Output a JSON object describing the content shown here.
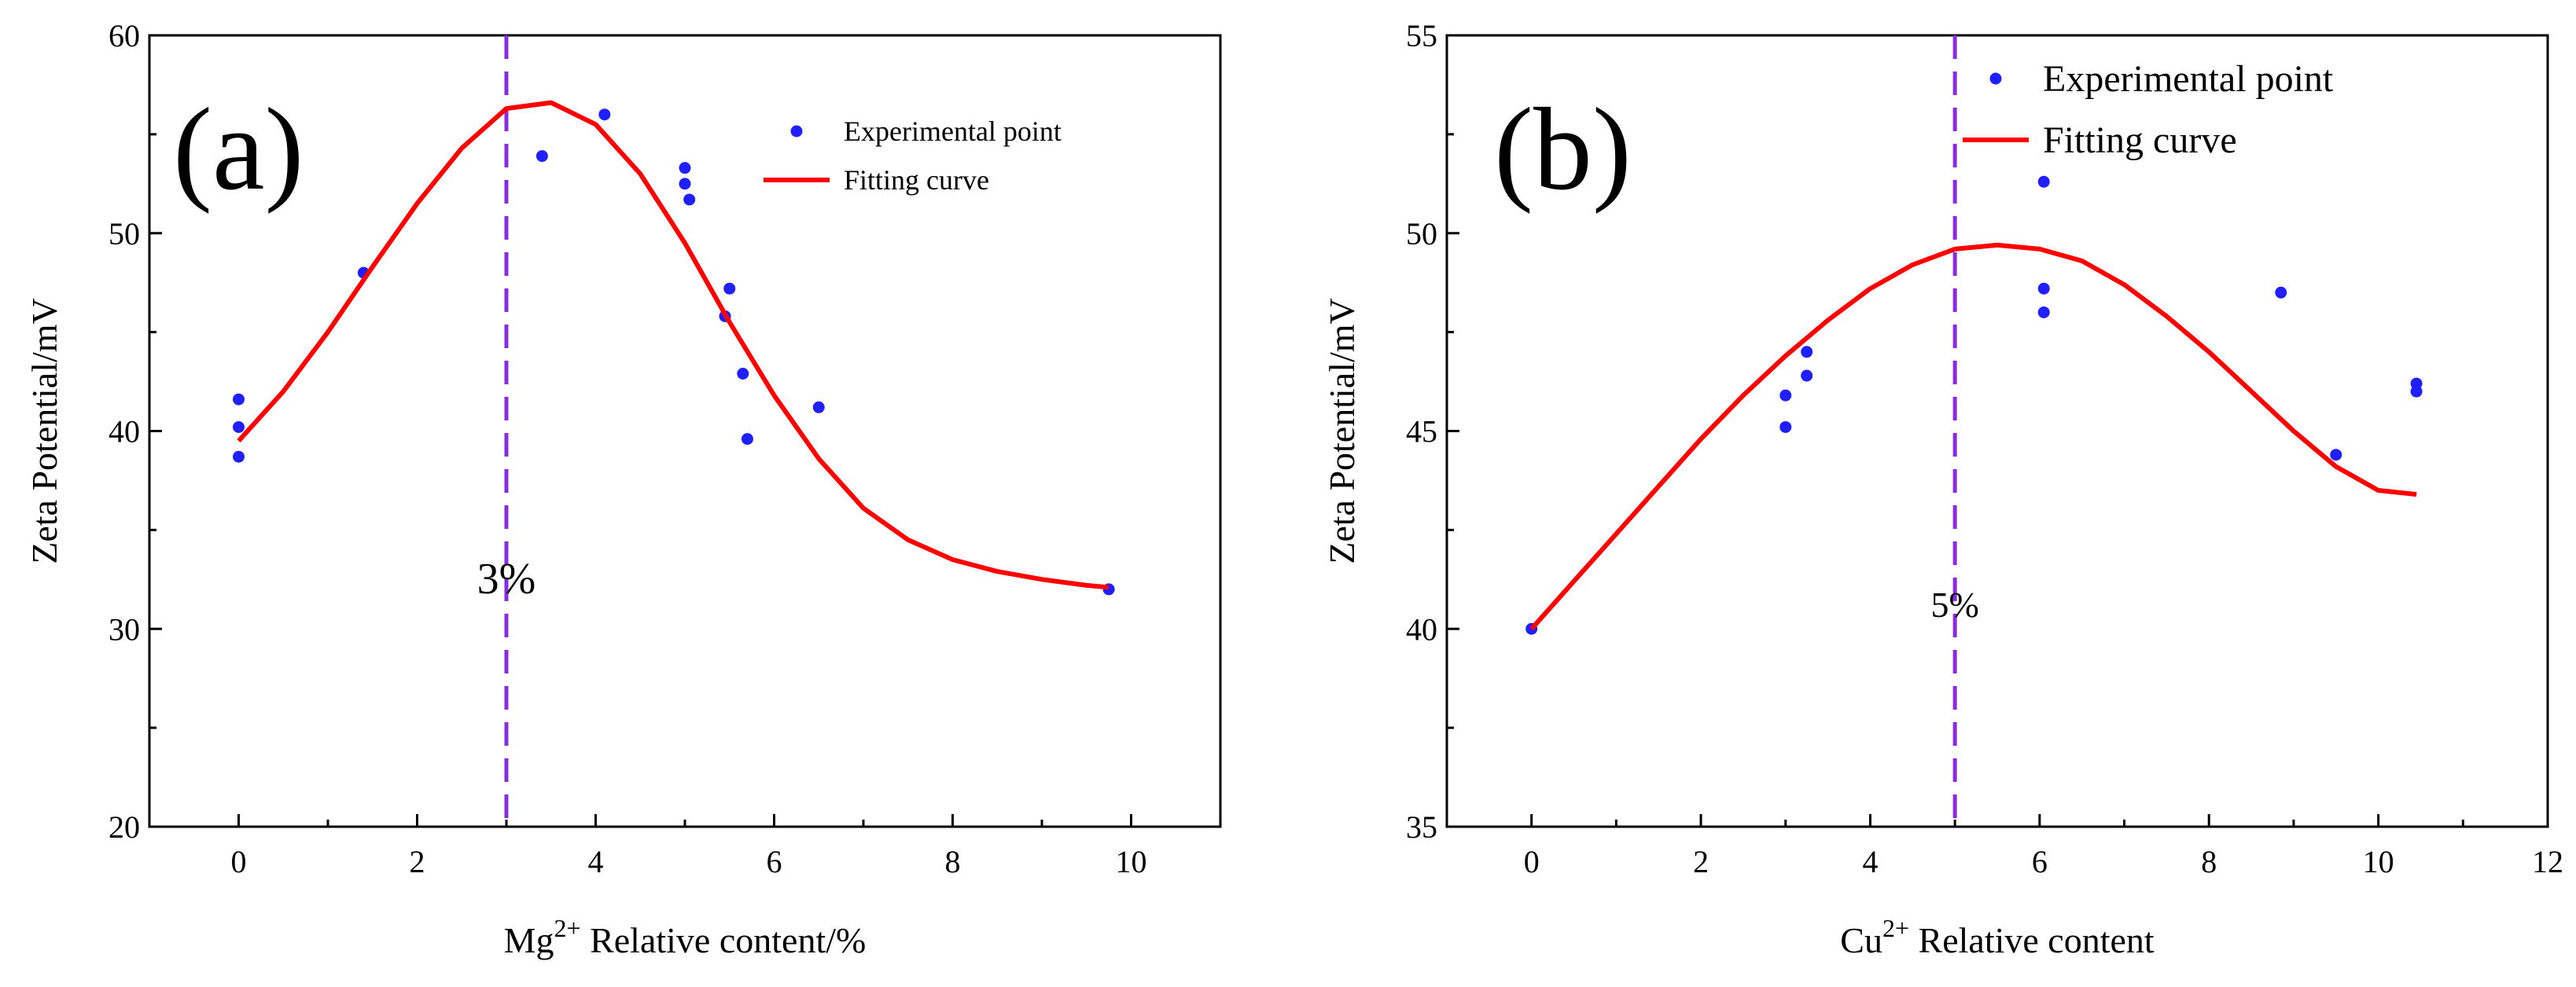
{
  "chart_data": [
    {
      "type": "scatter",
      "panel_label": "(a)",
      "xlabel_prefix": "Mg",
      "xlabel_sup": "2+",
      "xlabel_suffix": " Relative content/%",
      "ylabel": "Zeta Potential/mV",
      "xlim": [
        -1,
        11
      ],
      "ylim": [
        20,
        60
      ],
      "xticks": [
        0,
        2,
        4,
        6,
        8,
        10
      ],
      "yticks": [
        20,
        30,
        40,
        50,
        60
      ],
      "series": [
        {
          "name": "Experimental point",
          "kind": "points",
          "color": "#1f1fff",
          "x": [
            0,
            0,
            0,
            1.4,
            3.4,
            4.1,
            5.0,
            5.0,
            5.05,
            5.45,
            5.5,
            5.65,
            5.7,
            6.5,
            9.75
          ],
          "y": [
            41.6,
            40.2,
            38.7,
            48.0,
            53.9,
            56.0,
            53.3,
            52.5,
            51.7,
            45.8,
            47.2,
            42.9,
            39.6,
            41.2,
            32.0
          ]
        },
        {
          "name": "Fitting curve",
          "kind": "line",
          "color": "#ff0000",
          "x": [
            0,
            0.5,
            1,
            1.5,
            2,
            2.5,
            3,
            3.5,
            4,
            4.5,
            5,
            5.5,
            6,
            6.5,
            7,
            7.5,
            8,
            8.5,
            9,
            9.5,
            9.75
          ],
          "y": [
            39.5,
            42.0,
            45.0,
            48.3,
            51.5,
            54.3,
            56.3,
            56.6,
            55.5,
            53.0,
            49.5,
            45.5,
            41.8,
            38.6,
            36.1,
            34.5,
            33.5,
            32.9,
            32.5,
            32.2,
            32.1
          ]
        }
      ],
      "annotation": {
        "text": "3%",
        "x": 3,
        "y": 31.8,
        "vline_x": 3,
        "vline_color": "#8a2be2"
      },
      "legend_position": "top-right"
    },
    {
      "type": "scatter",
      "panel_label": "(b)",
      "xlabel_prefix": "Cu",
      "xlabel_sup": "2+",
      "xlabel_suffix": " Relative content",
      "ylabel": "Zeta Potential/mV",
      "xlim": [
        -1,
        12
      ],
      "ylim": [
        35,
        55
      ],
      "xticks": [
        0,
        2,
        4,
        6,
        8,
        10,
        12
      ],
      "yticks": [
        35,
        40,
        45,
        50,
        55
      ],
      "series": [
        {
          "name": "Experimental point",
          "kind": "points",
          "color": "#1f1fff",
          "x": [
            0,
            3.0,
            3.0,
            3.25,
            3.25,
            6.05,
            6.05,
            6.05,
            8.85,
            9.5,
            10.45,
            10.45
          ],
          "y": [
            40.0,
            45.9,
            45.1,
            47.0,
            46.4,
            51.3,
            48.6,
            48.0,
            48.5,
            44.4,
            46.2,
            46.0
          ]
        },
        {
          "name": "Fitting curve",
          "kind": "line",
          "color": "#ff0000",
          "x": [
            0,
            0.5,
            1,
            1.5,
            2,
            2.5,
            3,
            3.5,
            4,
            4.5,
            5,
            5.5,
            6,
            6.5,
            7,
            7.5,
            8,
            8.5,
            9,
            9.5,
            10,
            10.45
          ],
          "y": [
            40.0,
            41.2,
            42.4,
            43.6,
            44.8,
            45.9,
            46.9,
            47.8,
            48.6,
            49.2,
            49.6,
            49.7,
            49.6,
            49.3,
            48.7,
            47.9,
            47.0,
            46.0,
            45.0,
            44.1,
            43.5,
            43.4
          ]
        }
      ],
      "annotation": {
        "text": "5%",
        "x": 5,
        "y": 40.3,
        "vline_x": 5,
        "vline_color": "#8a2be2"
      },
      "legend_position": "top-right"
    }
  ]
}
